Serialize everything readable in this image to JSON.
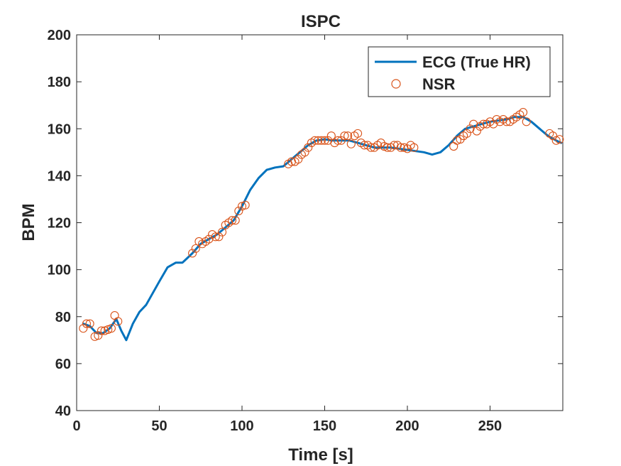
{
  "chart_data": {
    "type": "line",
    "title": "ISPC",
    "xlabel": "Time [s]",
    "ylabel": "BPM",
    "xlim": [
      0,
      294
    ],
    "ylim": [
      40,
      200
    ],
    "xticks": [
      0,
      50,
      100,
      150,
      200,
      250
    ],
    "yticks": [
      40,
      60,
      80,
      100,
      120,
      140,
      160,
      180,
      200
    ],
    "grid": false,
    "legend_position": "top-right",
    "colors": {
      "ecg": "#0072BD",
      "nsr": "#D95319",
      "axis": "#262626"
    },
    "series": [
      {
        "name": "ECG (True HR)",
        "style": "line",
        "x": [
          4,
          8,
          12,
          16,
          20,
          24,
          27,
          30,
          34,
          38,
          42,
          46,
          50,
          55,
          60,
          64,
          67,
          70,
          75,
          80,
          85,
          90,
          95,
          100,
          105,
          110,
          115,
          120,
          125,
          130,
          135,
          140,
          145,
          150,
          155,
          160,
          165,
          170,
          175,
          180,
          185,
          190,
          195,
          200,
          205,
          210,
          215,
          220,
          225,
          230,
          235,
          240,
          245,
          250,
          255,
          260,
          265,
          270,
          275,
          280,
          285,
          290,
          293
        ],
        "y": [
          77,
          76,
          73,
          73,
          75,
          79,
          74,
          70,
          77,
          82,
          85,
          90,
          95,
          101,
          103,
          103,
          105,
          107,
          111,
          113,
          115,
          118,
          121,
          127,
          134,
          139,
          142.5,
          143.5,
          144,
          147,
          150,
          153,
          155,
          155.5,
          155,
          155,
          155,
          154,
          153,
          152,
          152,
          152,
          151.5,
          151,
          150.5,
          150,
          149,
          150,
          153,
          157,
          160,
          161,
          162,
          163,
          163.5,
          164,
          165,
          165,
          163,
          160,
          157,
          155,
          154
        ]
      },
      {
        "name": "NSR",
        "style": "markers",
        "x": [
          4,
          6,
          8,
          11,
          13,
          15,
          17,
          19,
          21,
          23,
          25,
          70,
          72,
          74,
          76,
          78,
          80,
          82,
          84,
          86,
          88,
          90,
          92,
          94,
          96,
          98,
          100,
          102,
          128,
          130,
          132,
          134,
          136,
          138,
          140,
          142,
          144,
          146,
          148,
          150,
          152,
          154,
          156,
          158,
          160,
          162,
          164,
          166,
          168,
          170,
          172,
          174,
          176,
          178,
          180,
          182,
          184,
          186,
          188,
          190,
          192,
          194,
          196,
          198,
          200,
          202,
          204,
          228,
          230,
          232,
          234,
          236,
          238,
          240,
          242,
          244,
          246,
          248,
          250,
          252,
          254,
          256,
          258,
          260,
          262,
          264,
          266,
          268,
          270,
          272,
          286,
          288,
          290,
          292
        ],
        "y": [
          75,
          77,
          77,
          71.5,
          72,
          74,
          74,
          74.5,
          75,
          80.5,
          78,
          107,
          109,
          112,
          111,
          112,
          113,
          115,
          114,
          114,
          116,
          119,
          120,
          121,
          121,
          125,
          127,
          127.5,
          145,
          146,
          146,
          147,
          149,
          150,
          152,
          154,
          155,
          155,
          155,
          155,
          155,
          157,
          154,
          155,
          155,
          157,
          157,
          153.5,
          157,
          158,
          154,
          153,
          153,
          152,
          152,
          153,
          154,
          152.5,
          152,
          152,
          153,
          153,
          152,
          152,
          151.5,
          153,
          152,
          152.5,
          155,
          155.5,
          157,
          158,
          160,
          162,
          159,
          161,
          162,
          162,
          163,
          162,
          164,
          163,
          164,
          163,
          163,
          164,
          165,
          166,
          167,
          163,
          158,
          157,
          155,
          155.5
        ]
      }
    ]
  }
}
